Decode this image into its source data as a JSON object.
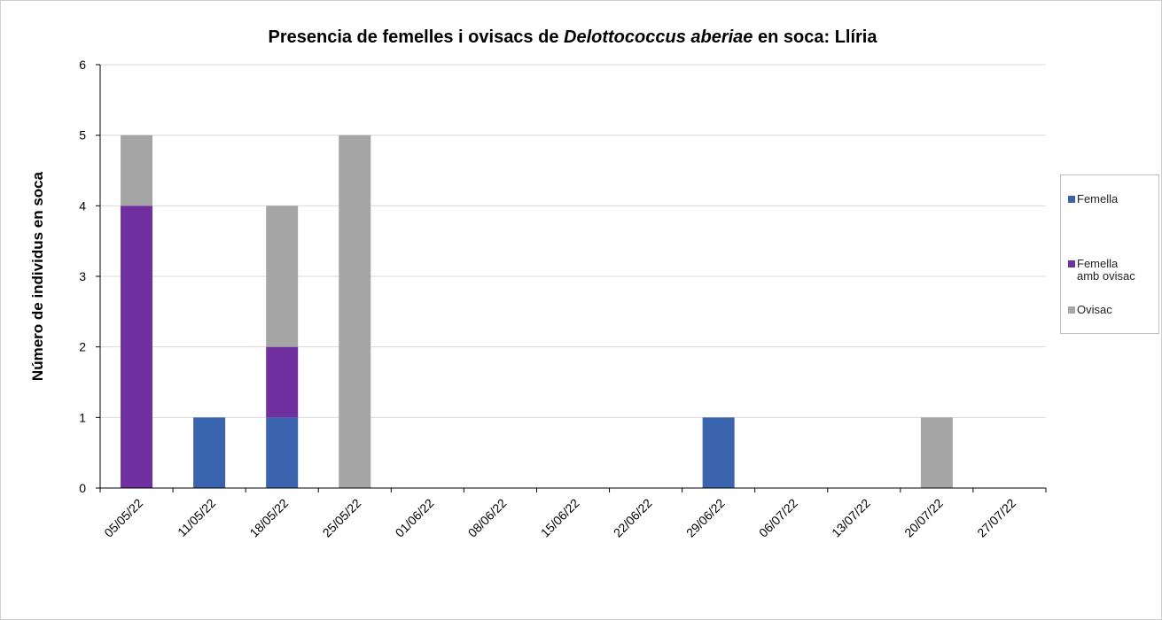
{
  "chart_data": {
    "type": "bar",
    "stacked": true,
    "title": [
      "Presencia de femelles i ovisacs de ",
      "Delottococcus aberiae",
      " en soca: Llíria"
    ],
    "y_label": "Número de individus en soca",
    "categories": [
      "05/05/22",
      "11/05/22",
      "18/05/22",
      "25/05/22",
      "01/06/22",
      "08/06/22",
      "15/06/22",
      "22/06/22",
      "29/06/22",
      "06/07/22",
      "13/07/22",
      "20/07/22",
      "27/07/22"
    ],
    "series": [
      {
        "name": "Femella",
        "color": "#3a64ad",
        "values": [
          0,
          1,
          1,
          0,
          0,
          0,
          0,
          0,
          1,
          0,
          0,
          0,
          0
        ]
      },
      {
        "name": "Femella amb ovisac",
        "color": "#7030a0",
        "values": [
          4,
          0,
          1,
          0,
          0,
          0,
          0,
          0,
          0,
          0,
          0,
          0,
          0
        ]
      },
      {
        "name": "Ovisac",
        "color": "#a5a5a5",
        "values": [
          1,
          0,
          2,
          5,
          0,
          0,
          0,
          0,
          0,
          0,
          0,
          1,
          0
        ]
      }
    ],
    "ylim": [
      0,
      6
    ],
    "yticks": [
      0,
      1,
      2,
      3,
      4,
      5,
      6
    ],
    "grid": true,
    "legend": "right"
  }
}
